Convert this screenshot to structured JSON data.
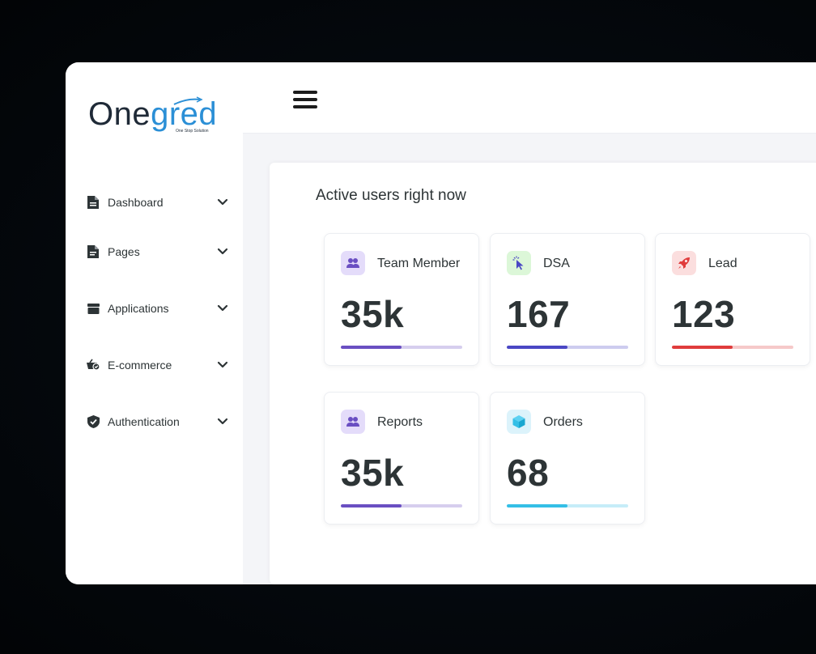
{
  "brand": {
    "name_part1": "One",
    "name_part2": "gred",
    "tagline": "One Stop Solution",
    "color": "#2b8fd6"
  },
  "sidebar": {
    "items": [
      {
        "label": "Dashboard",
        "icon": "document-icon"
      },
      {
        "label": "Pages",
        "icon": "page-icon"
      },
      {
        "label": "Applications",
        "icon": "folder-icon"
      },
      {
        "label": "E-commerce",
        "icon": "shopping-basket-icon"
      },
      {
        "label": "Authentication",
        "icon": "shield-check-icon"
      }
    ]
  },
  "header": {
    "menu_icon": "hamburger-menu-icon"
  },
  "main": {
    "title": "Active users right now",
    "cards": [
      {
        "label": "Team Member",
        "value": "35k",
        "icon": "users-icon",
        "color": "#6a4fc2",
        "icon_bg": "#e4dcfa",
        "progress": 0.5
      },
      {
        "label": "DSA",
        "value": "167",
        "icon": "cursor-click-icon",
        "color": "#4a47c4",
        "icon_bg": "#dcf7d8",
        "progress": 0.5
      },
      {
        "label": "Lead",
        "value": "123",
        "icon": "rocket-icon",
        "color": "#e03c3c",
        "icon_bg": "#fbdede",
        "progress": 0.5
      },
      {
        "label": "Reports",
        "value": "35k",
        "icon": "users-icon",
        "color": "#6a4fc2",
        "icon_bg": "#e4dcfa",
        "progress": 0.5
      },
      {
        "label": "Orders",
        "value": "68",
        "icon": "box-icon",
        "color": "#34bfe6",
        "icon_bg": "#dcf3fb",
        "progress": 0.5
      }
    ]
  }
}
